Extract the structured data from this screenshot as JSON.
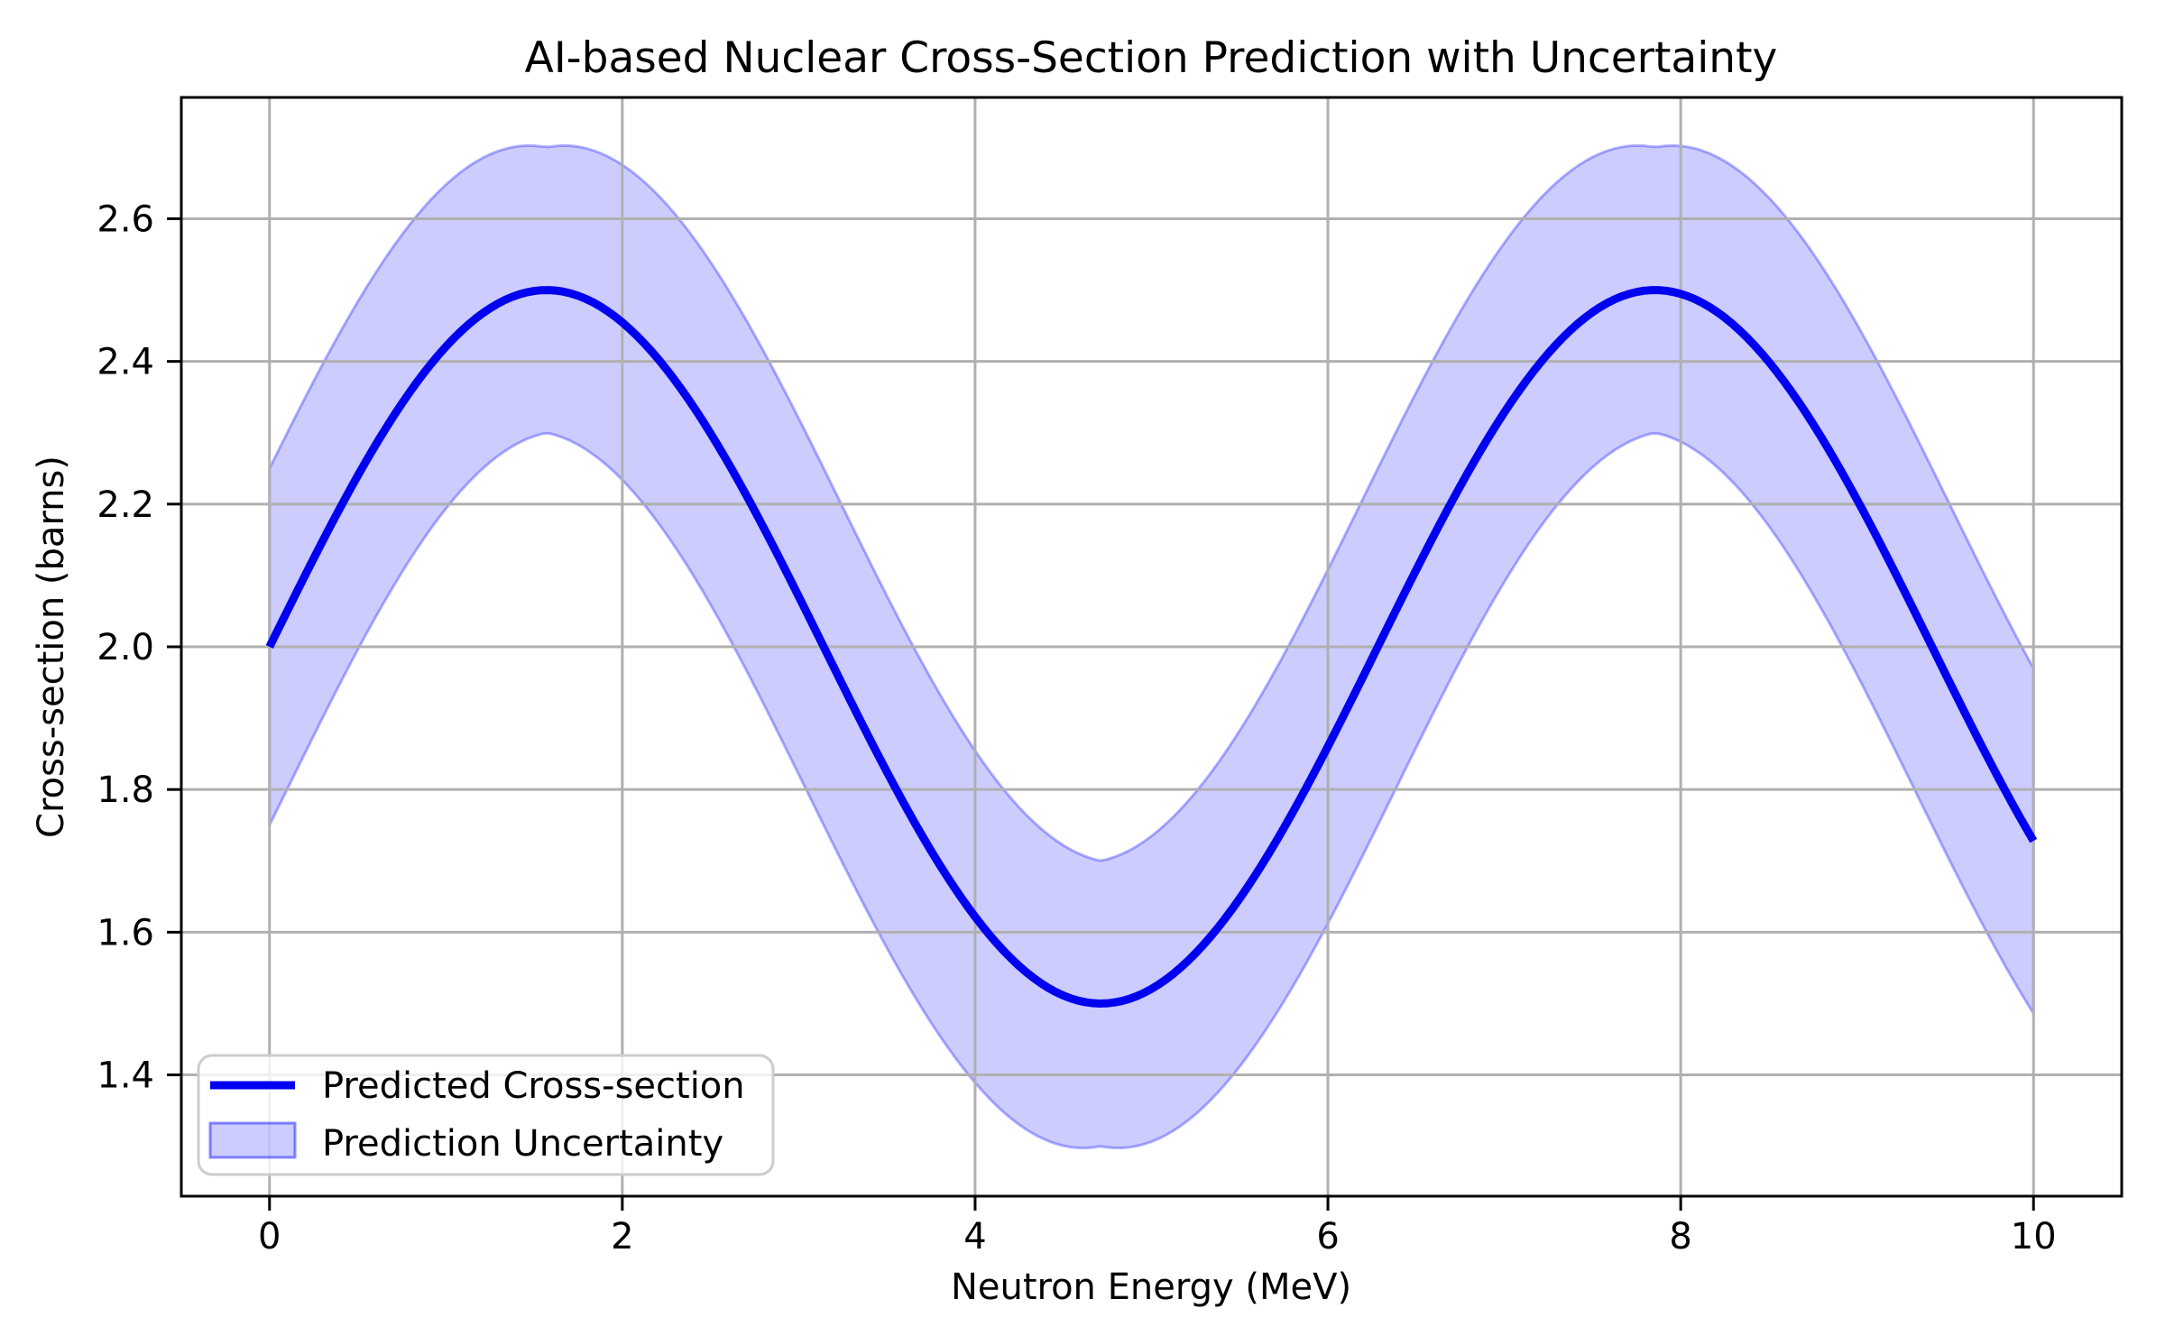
{
  "figure": {
    "background": "#ffffff"
  },
  "chart_data": {
    "type": "line",
    "title": "AI-based Nuclear Cross-Section Prediction with Uncertainty",
    "xlabel": "Neutron Energy (MeV)",
    "ylabel": "Cross-section (barns)",
    "xlim": [
      -0.5,
      10.5
    ],
    "ylim": [
      1.23,
      2.77
    ],
    "xticks": [
      0,
      2,
      4,
      6,
      8,
      10
    ],
    "yticks": [
      1.4,
      1.6,
      1.8,
      2.0,
      2.2,
      2.4,
      2.6
    ],
    "grid": true,
    "grid_color": "#b0b0b0",
    "spine_color": "#000000",
    "text_color": "#000000",
    "legend": {
      "position": "lower left",
      "border_color": "#cccccc",
      "background": "#ffffff",
      "background_alpha": 0.8
    },
    "x_range": {
      "start": 0,
      "end": 10,
      "n_points": 241
    },
    "series": [
      {
        "name": "Predicted Cross-section",
        "type": "line",
        "color": "#0000f0",
        "linewidth": 9,
        "formula": "y = 2 + 0.5*sin(x)",
        "params": {
          "offset": 2,
          "amplitude": 0.5
        }
      },
      {
        "name": "Prediction Uncertainty",
        "type": "band",
        "color": "#0000ff",
        "fill_alpha": 0.2,
        "edge_alpha": 0.3,
        "edge_width": 3,
        "formula": "y ± (0.2 + 0.05*|cos(x)|)",
        "params": {
          "base": 0.2,
          "cos_coeff": 0.05
        }
      }
    ],
    "samples": {
      "x": [
        0.0,
        0.5,
        1.0,
        1.5,
        2.0,
        2.5,
        3.0,
        3.5,
        4.0,
        4.5,
        5.0,
        5.5,
        6.0,
        6.5,
        7.0,
        7.5,
        8.0,
        8.5,
        9.0,
        9.5,
        10.0
      ],
      "predicted": [
        2.0,
        2.24,
        2.421,
        2.499,
        2.455,
        2.299,
        2.071,
        1.825,
        1.622,
        1.511,
        1.521,
        1.647,
        1.86,
        2.108,
        2.329,
        2.469,
        2.495,
        2.399,
        2.206,
        1.962,
        1.728
      ],
      "lower": [
        1.75,
        1.996,
        2.194,
        2.295,
        2.234,
        2.059,
        1.821,
        1.578,
        1.389,
        1.301,
        1.306,
        1.412,
        1.612,
        1.859,
        2.091,
        2.252,
        2.287,
        2.169,
        1.961,
        1.713,
        1.486
      ],
      "upper": [
        2.25,
        2.484,
        2.648,
        2.702,
        2.675,
        2.539,
        2.32,
        2.071,
        1.854,
        1.722,
        1.735,
        1.883,
        2.108,
        2.356,
        2.566,
        2.686,
        2.702,
        2.629,
        2.452,
        2.212,
        1.97
      ]
    }
  }
}
